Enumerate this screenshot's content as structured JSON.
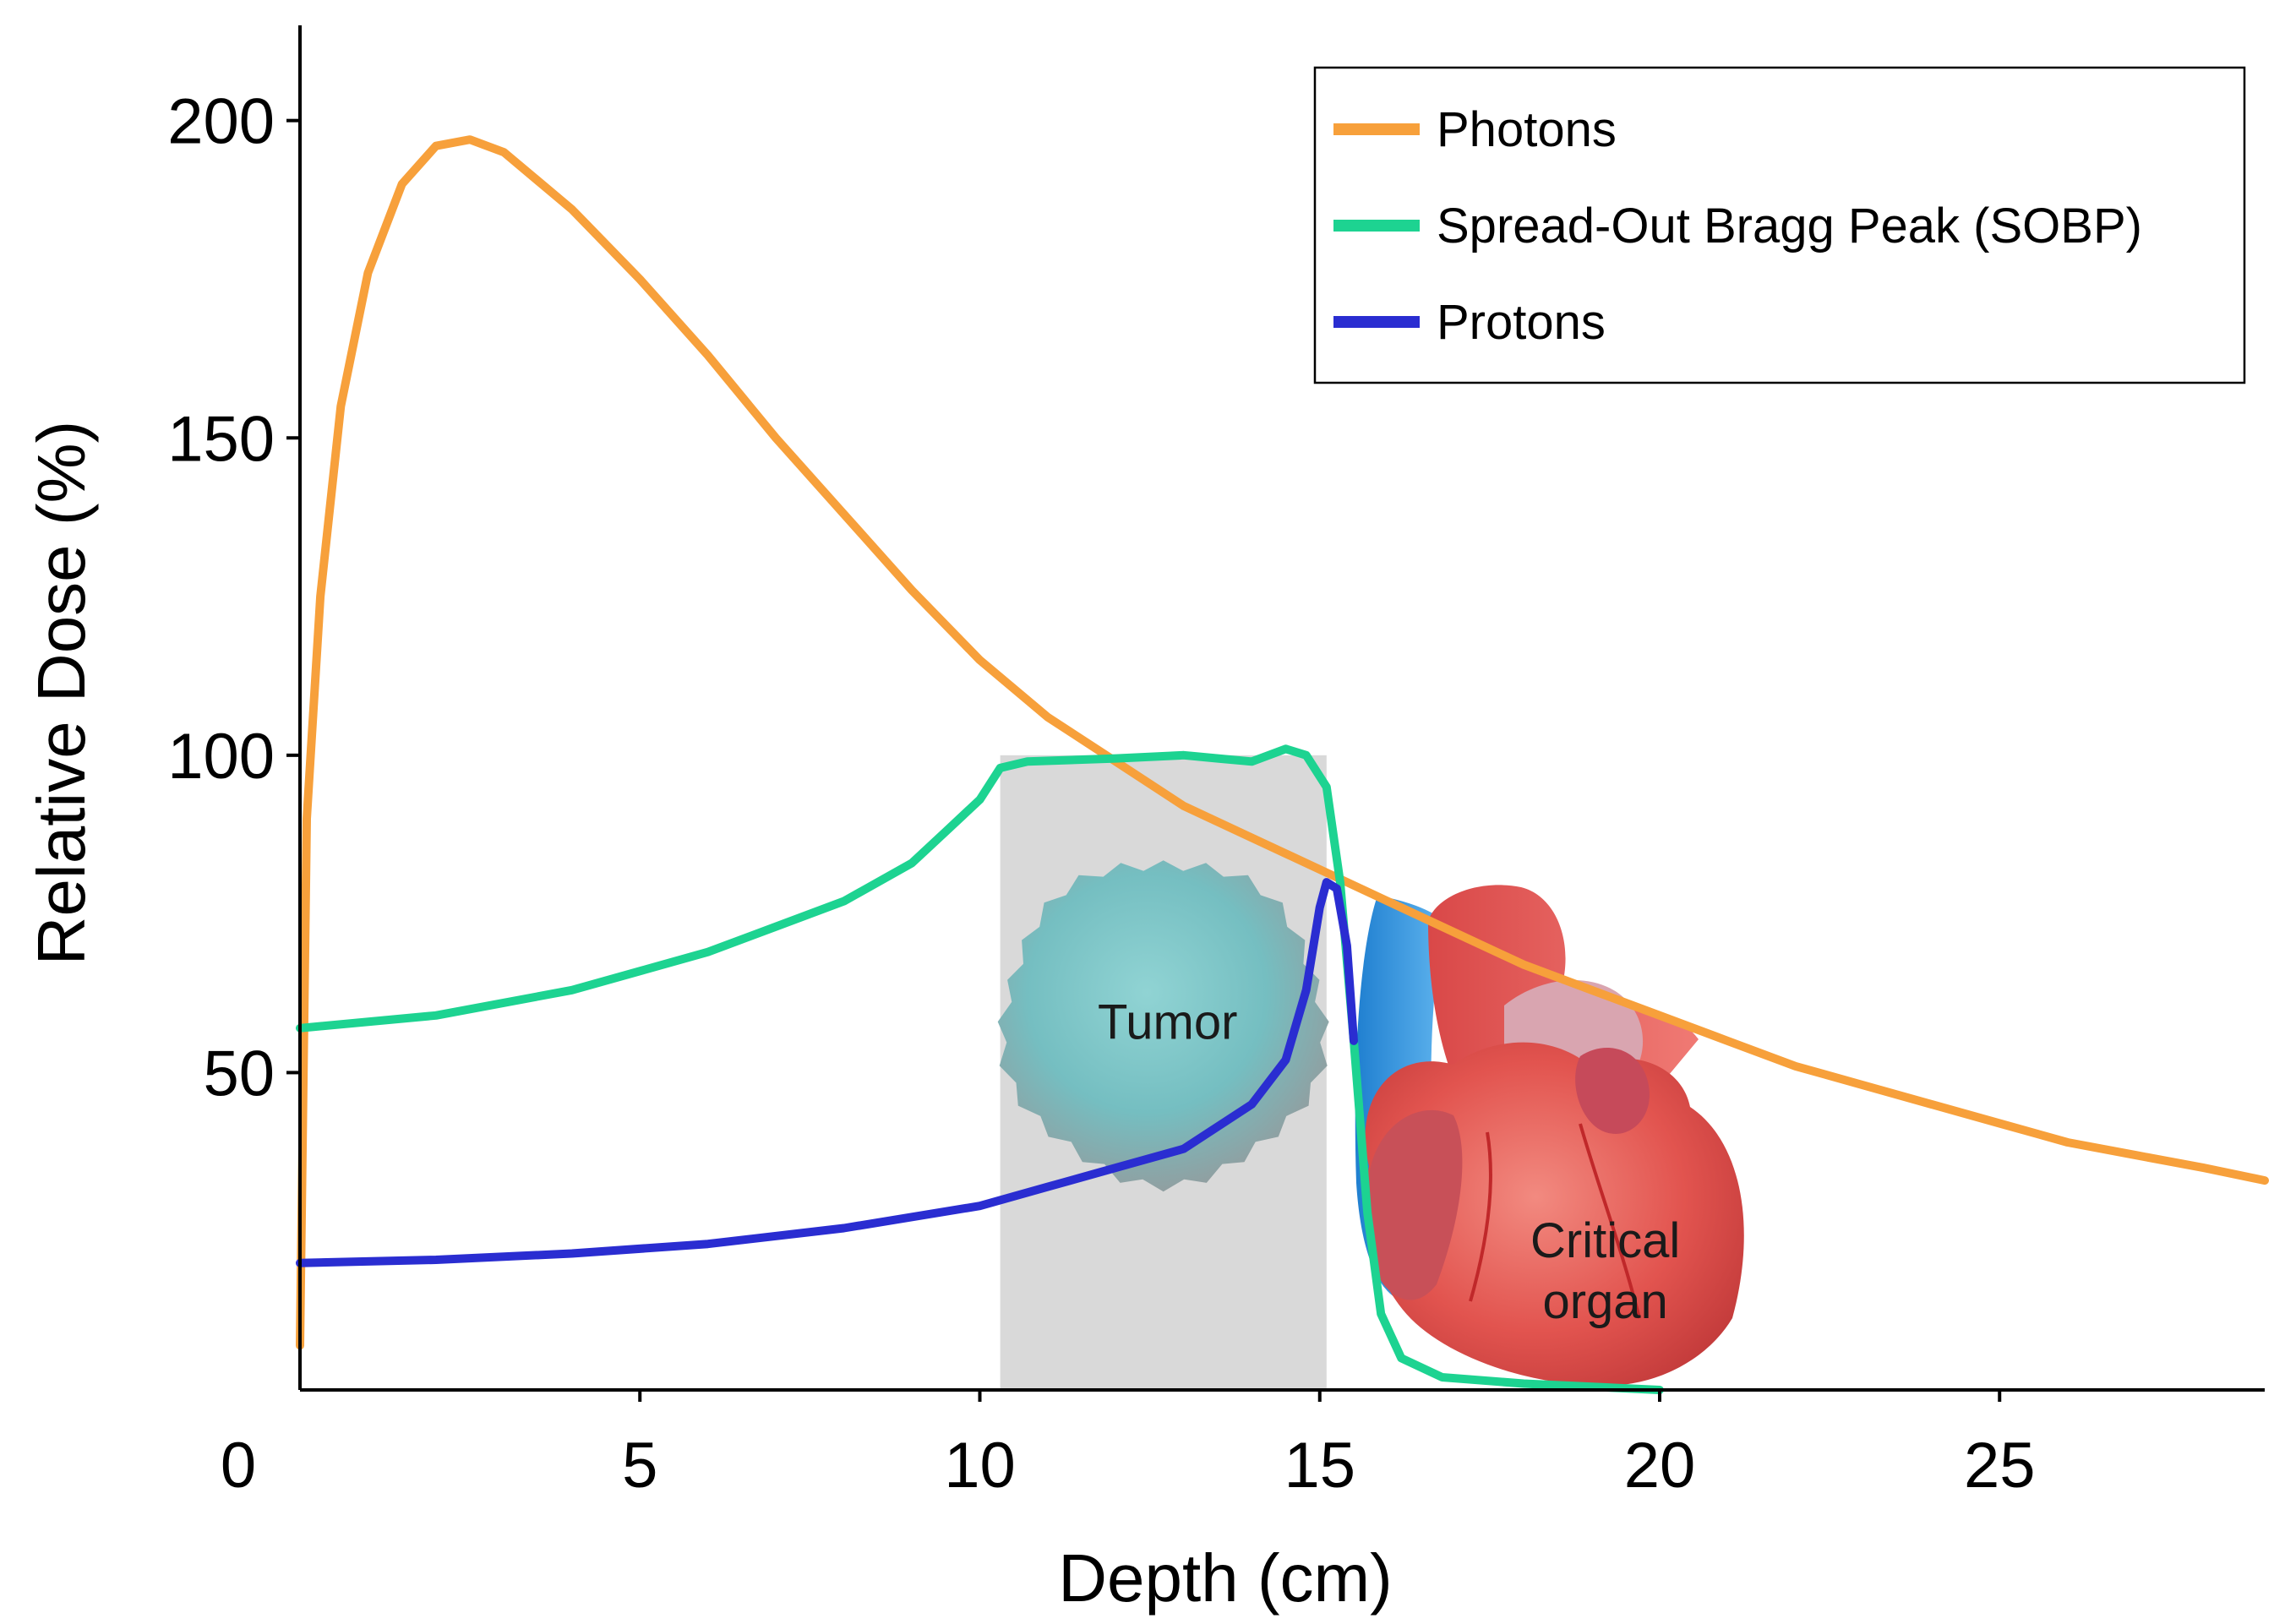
{
  "chart_data": {
    "type": "line",
    "title": "",
    "xlabel": "Depth (cm)",
    "ylabel": "Relative Dose (%)",
    "xlim": [
      0,
      28.9
    ],
    "ylim": [
      0,
      215
    ],
    "x_ticks": [
      "0",
      "5",
      "10",
      "15",
      "20",
      "25"
    ],
    "y_ticks": [
      "50",
      "100",
      "150",
      "200"
    ],
    "grid": false,
    "legend_position": "top-right",
    "series": [
      {
        "name": "Photons",
        "color": "#F7A03B",
        "points": [
          [
            0,
            7
          ],
          [
            0.1,
            90
          ],
          [
            0.3,
            125
          ],
          [
            0.6,
            155
          ],
          [
            1.0,
            176
          ],
          [
            1.5,
            190
          ],
          [
            2.0,
            196
          ],
          [
            2.5,
            197
          ],
          [
            3.0,
            195
          ],
          [
            4.0,
            186
          ],
          [
            5.0,
            175
          ],
          [
            6.0,
            163
          ],
          [
            7.0,
            150
          ],
          [
            8.0,
            138
          ],
          [
            9.0,
            126
          ],
          [
            10.0,
            115
          ],
          [
            11.0,
            106
          ],
          [
            12.0,
            99
          ],
          [
            13.0,
            92
          ],
          [
            14.0,
            87
          ],
          [
            15.0,
            82
          ],
          [
            16.0,
            77
          ],
          [
            17.0,
            72
          ],
          [
            18.0,
            67
          ],
          [
            19.0,
            63
          ],
          [
            20.0,
            59
          ],
          [
            21.0,
            55
          ],
          [
            22.0,
            51
          ],
          [
            23.0,
            48
          ],
          [
            24.0,
            45
          ],
          [
            25.0,
            42
          ],
          [
            26.0,
            39
          ],
          [
            27.0,
            37
          ],
          [
            28.0,
            35
          ],
          [
            28.9,
            33
          ]
        ]
      },
      {
        "name": "Spread-Out Bragg Peak (SOBP)",
        "color": "#1DD391",
        "points": [
          [
            0,
            57
          ],
          [
            2,
            59
          ],
          [
            4,
            63
          ],
          [
            6,
            69
          ],
          [
            7,
            73
          ],
          [
            8,
            77
          ],
          [
            9,
            83
          ],
          [
            9.5,
            88
          ],
          [
            10.0,
            93
          ],
          [
            10.3,
            98
          ],
          [
            10.7,
            99
          ],
          [
            12,
            99.5
          ],
          [
            13,
            100
          ],
          [
            13.5,
            99.5
          ],
          [
            14.0,
            99
          ],
          [
            14.5,
            101
          ],
          [
            14.8,
            100
          ],
          [
            15.1,
            95
          ],
          [
            15.3,
            80
          ],
          [
            15.5,
            55
          ],
          [
            15.7,
            28
          ],
          [
            15.9,
            12
          ],
          [
            16.2,
            5
          ],
          [
            16.8,
            2
          ],
          [
            18.0,
            1
          ],
          [
            20.0,
            0
          ]
        ]
      },
      {
        "name": "Protons",
        "color": "#2A2DD1",
        "points": [
          [
            0,
            20
          ],
          [
            2,
            20.5
          ],
          [
            4,
            21.5
          ],
          [
            6,
            23
          ],
          [
            8,
            25.5
          ],
          [
            10,
            29
          ],
          [
            11,
            32
          ],
          [
            12,
            35
          ],
          [
            13,
            38
          ],
          [
            14,
            45
          ],
          [
            14.5,
            52
          ],
          [
            14.8,
            63
          ],
          [
            15.0,
            76
          ],
          [
            15.1,
            80
          ],
          [
            15.25,
            79
          ],
          [
            15.4,
            70
          ],
          [
            15.5,
            55
          ]
        ]
      }
    ],
    "annotations": [
      {
        "label": "Tumor",
        "region_x": [
          10.3,
          15.1
        ]
      },
      {
        "label": "Critical organ",
        "region_x": [
          16.3,
          19.5
        ]
      }
    ]
  },
  "annotation_text": {
    "tumor": "Tumor",
    "organ_line1": "Critical",
    "organ_line2": "organ"
  },
  "colors": {
    "tumor_region": "#d9d9d9",
    "tumor": "#6fc3c6",
    "organ": "#e64a4a",
    "vessel": "#2a8ed6"
  }
}
